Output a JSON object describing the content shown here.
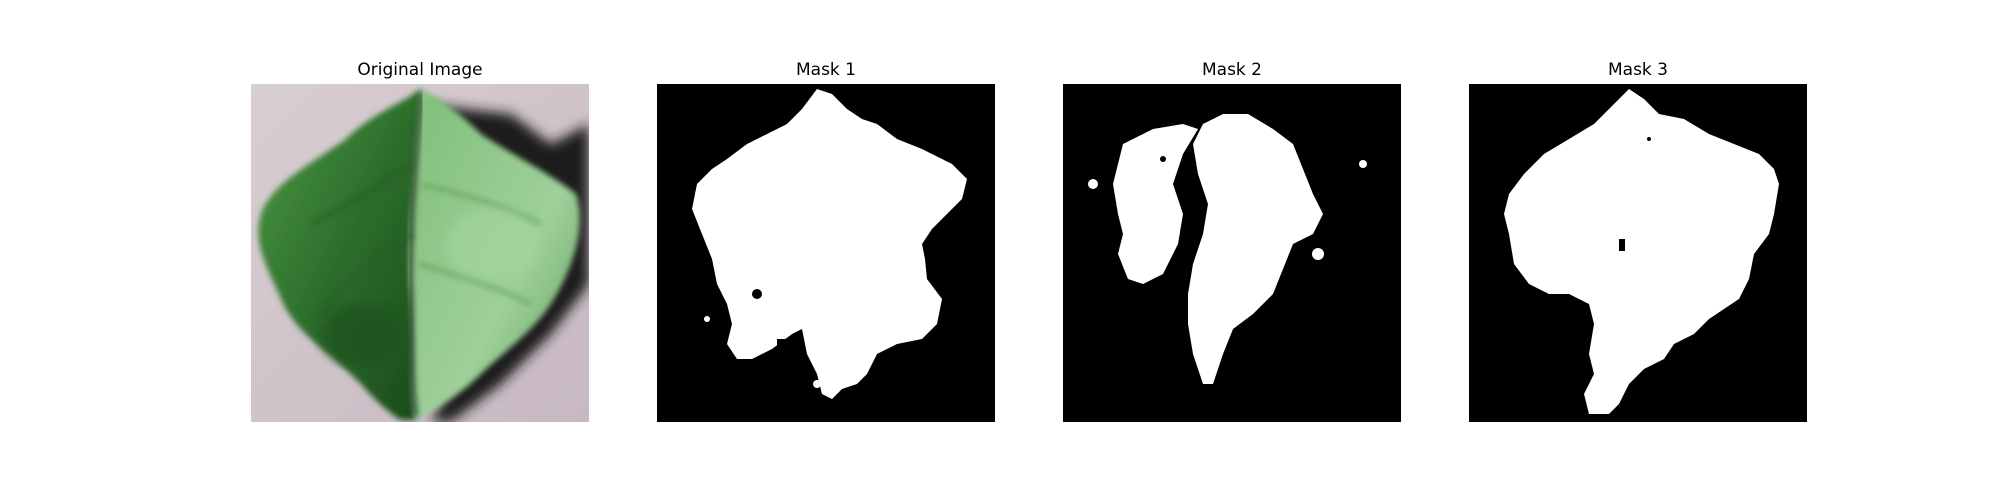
{
  "panels": [
    {
      "title": "Original Image",
      "kind": "photo"
    },
    {
      "title": "Mask 1",
      "kind": "mask"
    },
    {
      "title": "Mask 2",
      "kind": "mask"
    },
    {
      "title": "Mask 3",
      "kind": "mask"
    }
  ],
  "colors": {
    "background": "#d3c6cc",
    "leaf_dark": "#1f5a22",
    "leaf_mid": "#3f8a3c",
    "leaf_light": "#8fc58c",
    "shadow": "#1c1b1c",
    "mask_bg": "#000000",
    "mask_fg": "#ffffff"
  }
}
